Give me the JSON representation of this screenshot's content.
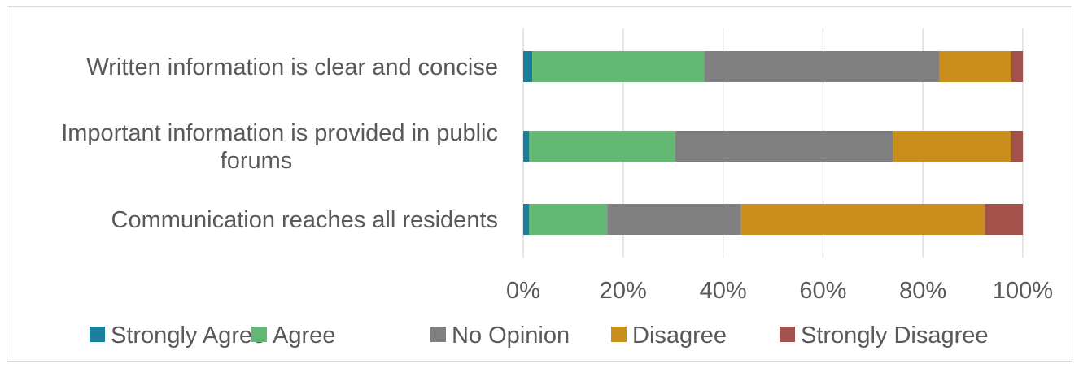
{
  "chart_data": {
    "type": "bar",
    "orientation": "horizontal",
    "stacked": "percent",
    "categories": [
      [
        "Written information is clear and concise"
      ],
      [
        "Important information is provided in public",
        "forums"
      ],
      [
        "Communication reaches all residents"
      ]
    ],
    "series": [
      {
        "name": "Strongly Agree",
        "color": "#1a7f9b",
        "values": [
          1.8,
          1.2,
          1.2
        ]
      },
      {
        "name": "Agree",
        "color": "#63b874",
        "values": [
          34.4,
          29.2,
          15.6
        ]
      },
      {
        "name": "No Opinion",
        "color": "#808080",
        "values": [
          47.1,
          43.6,
          26.8
        ]
      },
      {
        "name": "Disagree",
        "color": "#c98e1c",
        "values": [
          14.4,
          23.7,
          48.8
        ]
      },
      {
        "name": "Strongly Disagree",
        "color": "#a3514a",
        "values": [
          2.3,
          2.3,
          7.6
        ]
      }
    ],
    "xlim": [
      0,
      100
    ],
    "xticks": [
      "0%",
      "20%",
      "40%",
      "60%",
      "80%",
      "100%"
    ],
    "grid": true,
    "legend_position": "bottom"
  }
}
